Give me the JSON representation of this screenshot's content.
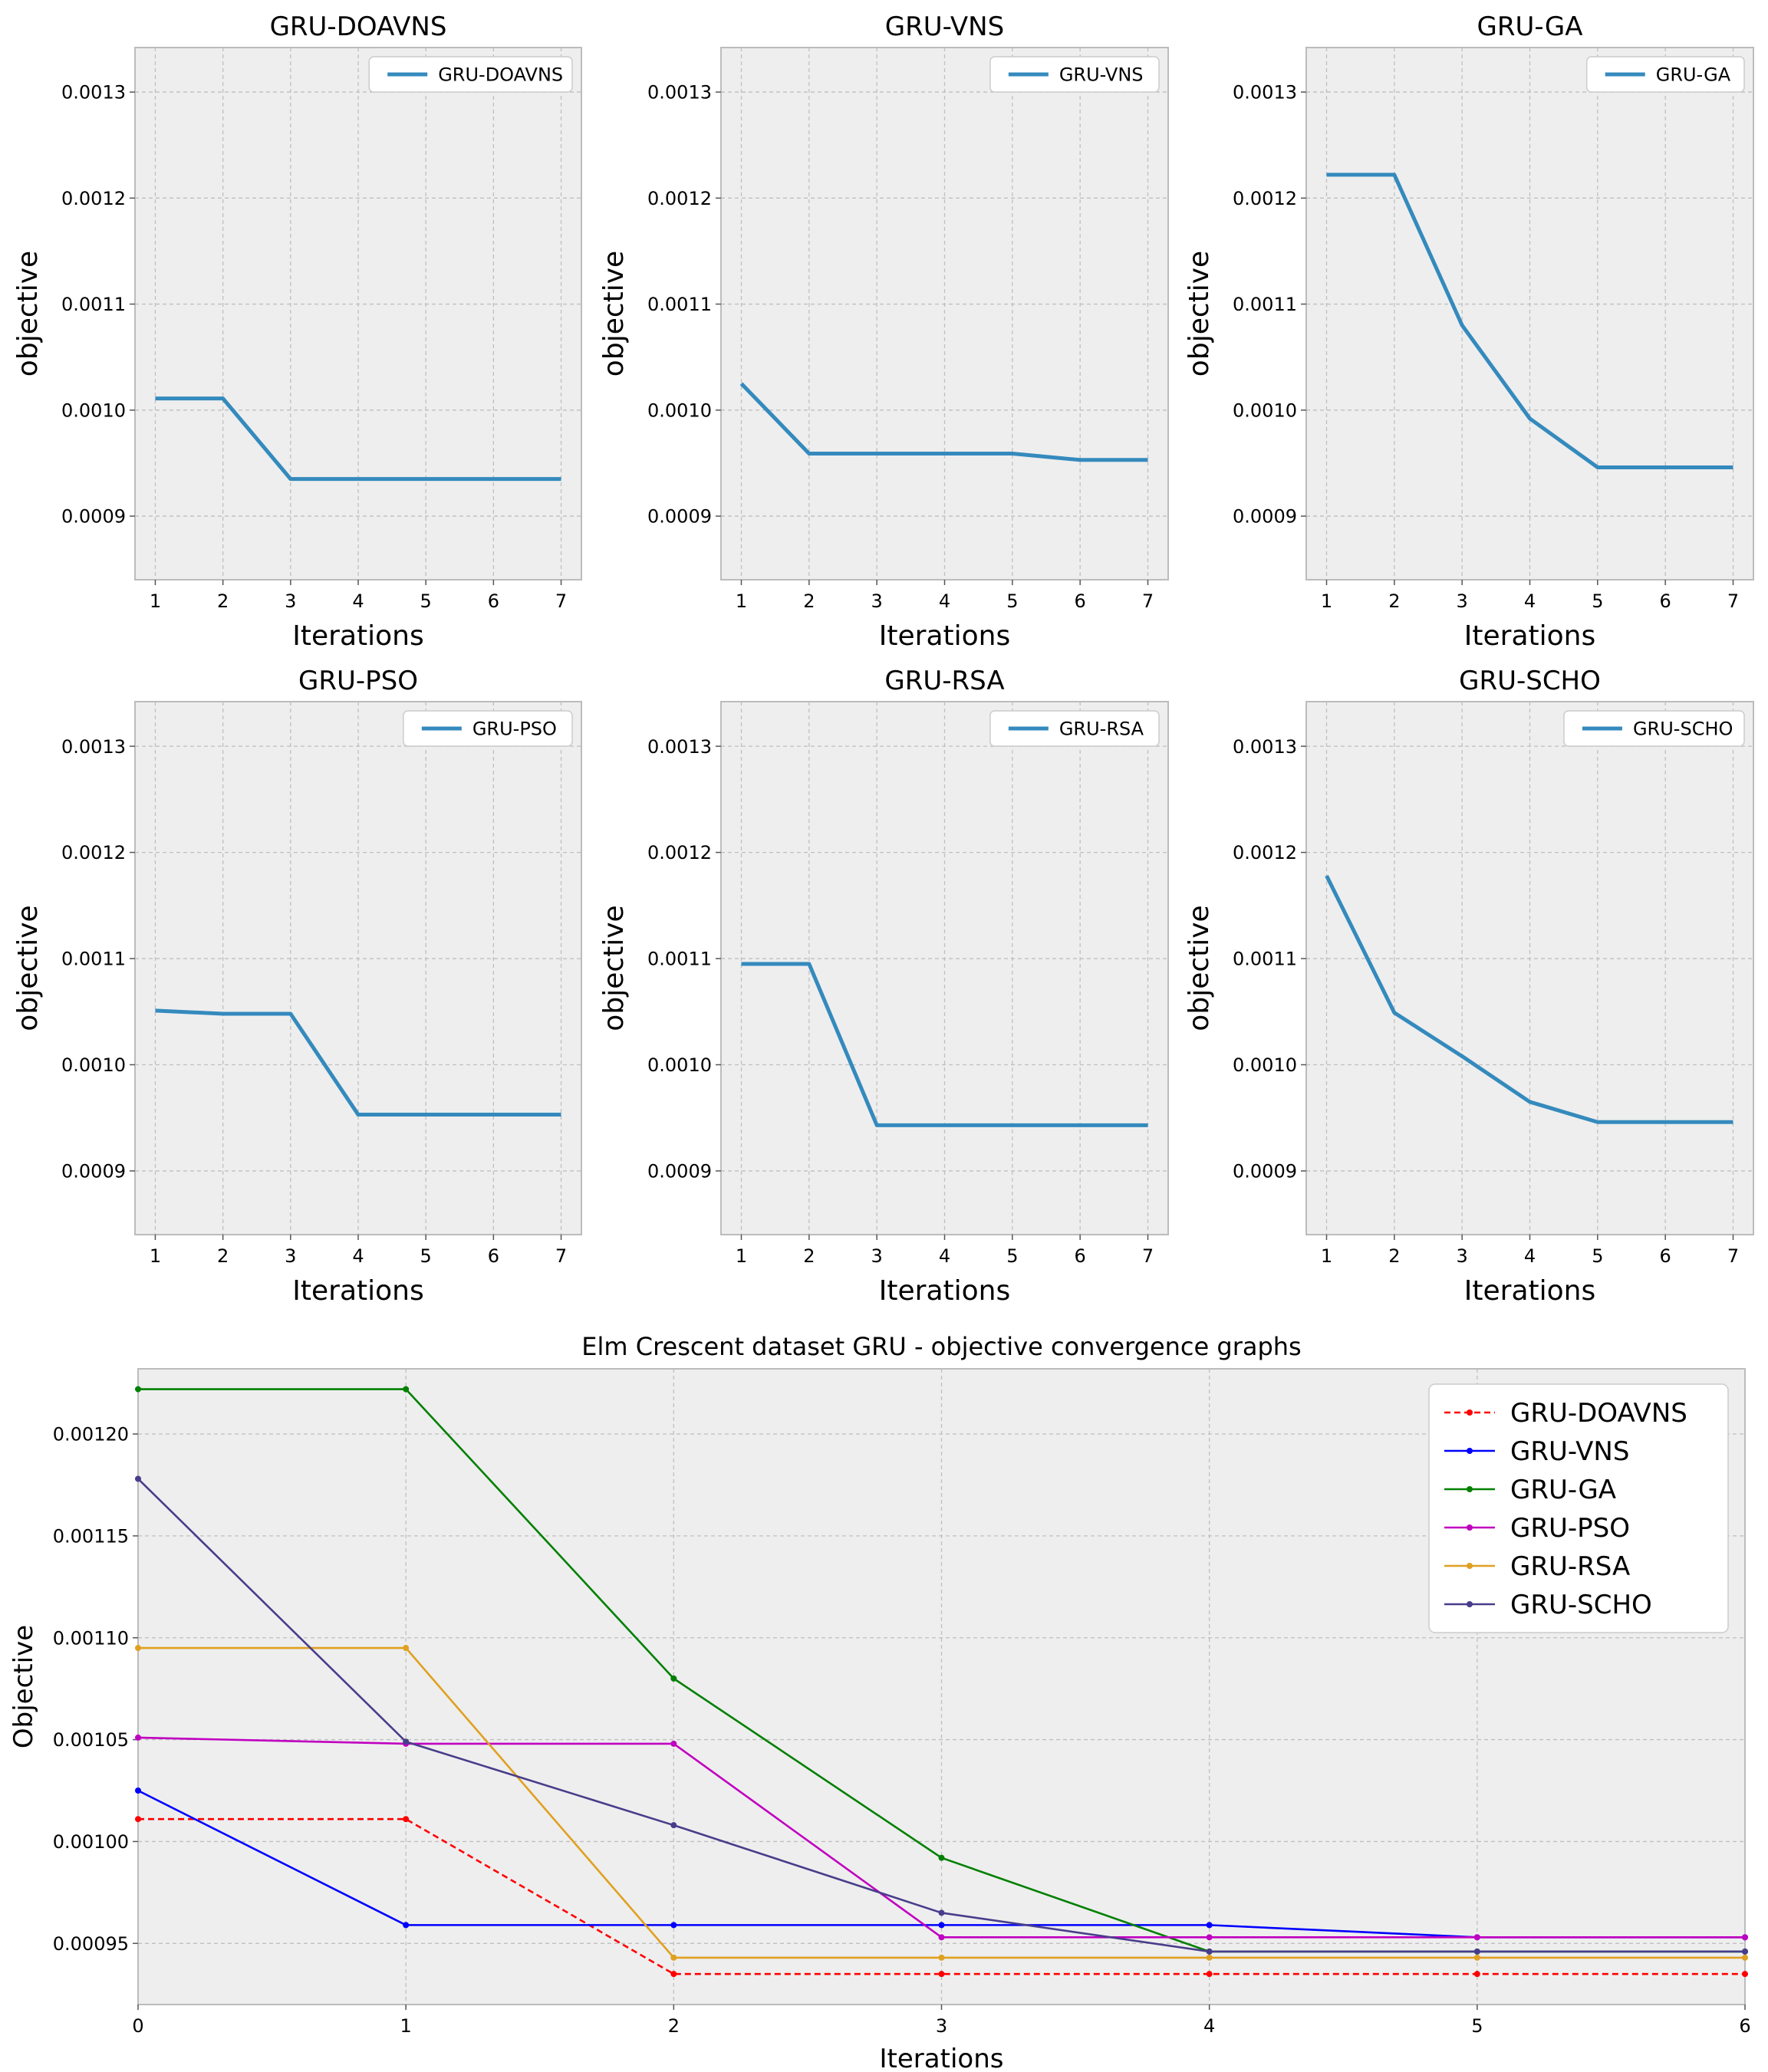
{
  "figure": {
    "background": "#ffffff",
    "plot_bg": "#eeeeee",
    "grid": "#bfbfbf",
    "spine": "#bcbcbc",
    "line_color": "#348abd"
  },
  "chart_data": [
    {
      "type": "line",
      "title": "GRU-DOAVNS",
      "xlabel": "Iterations",
      "ylabel": "objective",
      "x": [
        1,
        2,
        3,
        4,
        5,
        6,
        7
      ],
      "values": [
        0.001011,
        0.001011,
        0.000935,
        0.000935,
        0.000935,
        0.000935,
        0.000935
      ],
      "legend": "GRU-DOAVNS",
      "legend_position": "upper right",
      "xlim": [
        0.7,
        7.3
      ],
      "ylim": [
        0.00084,
        0.001342
      ],
      "xticks": [
        1,
        2,
        3,
        4,
        5,
        6,
        7
      ],
      "xtick_labels": [
        "1",
        "2",
        "3",
        "4",
        "5",
        "6",
        "7"
      ],
      "yticks": [
        0.0009,
        0.001,
        0.0011,
        0.0012,
        0.0013
      ],
      "ytick_labels": [
        "0.0009",
        "0.0010",
        "0.0011",
        "0.0012",
        "0.0013"
      ]
    },
    {
      "type": "line",
      "title": "GRU-VNS",
      "xlabel": "Iterations",
      "ylabel": "objective",
      "x": [
        1,
        2,
        3,
        4,
        5,
        6,
        7
      ],
      "values": [
        0.001025,
        0.000959,
        0.000959,
        0.000959,
        0.000959,
        0.000953,
        0.000953
      ],
      "legend": "GRU-VNS",
      "legend_position": "upper right",
      "xlim": [
        0.7,
        7.3
      ],
      "ylim": [
        0.00084,
        0.001342
      ],
      "xticks": [
        1,
        2,
        3,
        4,
        5,
        6,
        7
      ],
      "xtick_labels": [
        "1",
        "2",
        "3",
        "4",
        "5",
        "6",
        "7"
      ],
      "yticks": [
        0.0009,
        0.001,
        0.0011,
        0.0012,
        0.0013
      ],
      "ytick_labels": [
        "0.0009",
        "0.0010",
        "0.0011",
        "0.0012",
        "0.0013"
      ]
    },
    {
      "type": "line",
      "title": "GRU-GA",
      "xlabel": "Iterations",
      "ylabel": "objective",
      "x": [
        1,
        2,
        3,
        4,
        5,
        6,
        7
      ],
      "values": [
        0.001222,
        0.001222,
        0.00108,
        0.000992,
        0.000946,
        0.000946,
        0.000946
      ],
      "legend": "GRU-GA",
      "legend_position": "upper right",
      "xlim": [
        0.7,
        7.3
      ],
      "ylim": [
        0.00084,
        0.001342
      ],
      "xticks": [
        1,
        2,
        3,
        4,
        5,
        6,
        7
      ],
      "xtick_labels": [
        "1",
        "2",
        "3",
        "4",
        "5",
        "6",
        "7"
      ],
      "yticks": [
        0.0009,
        0.001,
        0.0011,
        0.0012,
        0.0013
      ],
      "ytick_labels": [
        "0.0009",
        "0.0010",
        "0.0011",
        "0.0012",
        "0.0013"
      ]
    },
    {
      "type": "line",
      "title": "GRU-PSO",
      "xlabel": "Iterations",
      "ylabel": "objective",
      "x": [
        1,
        2,
        3,
        4,
        5,
        6,
        7
      ],
      "values": [
        0.001051,
        0.001048,
        0.001048,
        0.000953,
        0.000953,
        0.000953,
        0.000953
      ],
      "legend": "GRU-PSO",
      "legend_position": "upper right",
      "xlim": [
        0.7,
        7.3
      ],
      "ylim": [
        0.00084,
        0.001342
      ],
      "xticks": [
        1,
        2,
        3,
        4,
        5,
        6,
        7
      ],
      "xtick_labels": [
        "1",
        "2",
        "3",
        "4",
        "5",
        "6",
        "7"
      ],
      "yticks": [
        0.0009,
        0.001,
        0.0011,
        0.0012,
        0.0013
      ],
      "ytick_labels": [
        "0.0009",
        "0.0010",
        "0.0011",
        "0.0012",
        "0.0013"
      ]
    },
    {
      "type": "line",
      "title": "GRU-RSA",
      "xlabel": "Iterations",
      "ylabel": "objective",
      "x": [
        1,
        2,
        3,
        4,
        5,
        6,
        7
      ],
      "values": [
        0.001095,
        0.001095,
        0.000943,
        0.000943,
        0.000943,
        0.000943,
        0.000943
      ],
      "legend": "GRU-RSA",
      "legend_position": "upper right",
      "xlim": [
        0.7,
        7.3
      ],
      "ylim": [
        0.00084,
        0.001342
      ],
      "xticks": [
        1,
        2,
        3,
        4,
        5,
        6,
        7
      ],
      "xtick_labels": [
        "1",
        "2",
        "3",
        "4",
        "5",
        "6",
        "7"
      ],
      "yticks": [
        0.0009,
        0.001,
        0.0011,
        0.0012,
        0.0013
      ],
      "ytick_labels": [
        "0.0009",
        "0.0010",
        "0.0011",
        "0.0012",
        "0.0013"
      ]
    },
    {
      "type": "line",
      "title": "GRU-SCHO",
      "xlabel": "Iterations",
      "ylabel": "objective",
      "x": [
        1,
        2,
        3,
        4,
        5,
        6,
        7
      ],
      "values": [
        0.001178,
        0.001049,
        0.001008,
        0.000965,
        0.000946,
        0.000946,
        0.000946
      ],
      "legend": "GRU-SCHO",
      "legend_position": "upper right",
      "xlim": [
        0.7,
        7.3
      ],
      "ylim": [
        0.00084,
        0.001342
      ],
      "xticks": [
        1,
        2,
        3,
        4,
        5,
        6,
        7
      ],
      "xtick_labels": [
        "1",
        "2",
        "3",
        "4",
        "5",
        "6",
        "7"
      ],
      "yticks": [
        0.0009,
        0.001,
        0.0011,
        0.0012,
        0.0013
      ],
      "ytick_labels": [
        "0.0009",
        "0.0010",
        "0.0011",
        "0.0012",
        "0.0013"
      ]
    },
    {
      "type": "line",
      "title": "Elm Crescent dataset GRU -  objective convergence graphs",
      "xlabel": "Iterations",
      "ylabel": "Objective",
      "x": [
        0,
        1,
        2,
        3,
        4,
        5,
        6
      ],
      "xlim": [
        0,
        6
      ],
      "ylim": [
        0.00092,
        0.001232
      ],
      "xticks": [
        0,
        1,
        2,
        3,
        4,
        5,
        6
      ],
      "xtick_labels": [
        "0",
        "1",
        "2",
        "3",
        "4",
        "5",
        "6"
      ],
      "yticks": [
        0.00095,
        0.001,
        0.00105,
        0.0011,
        0.00115,
        0.0012
      ],
      "ytick_labels": [
        "0.00095",
        "0.00100",
        "0.00105",
        "0.00110",
        "0.00115",
        "0.00120"
      ],
      "legend_position": "upper right",
      "series": [
        {
          "name": "GRU-DOAVNS",
          "color": "#ff0000",
          "dashed": true,
          "values": [
            0.001011,
            0.001011,
            0.000935,
            0.000935,
            0.000935,
            0.000935,
            0.000935
          ]
        },
        {
          "name": "GRU-VNS",
          "color": "#0000ff",
          "dashed": false,
          "values": [
            0.001025,
            0.000959,
            0.000959,
            0.000959,
            0.000959,
            0.000953,
            0.000953
          ]
        },
        {
          "name": "GRU-GA",
          "color": "#008000",
          "dashed": false,
          "values": [
            0.001222,
            0.001222,
            0.00108,
            0.000992,
            0.000946,
            0.000946,
            0.000946
          ]
        },
        {
          "name": "GRU-PSO",
          "color": "#c000c0",
          "dashed": false,
          "values": [
            0.001051,
            0.001048,
            0.001048,
            0.000953,
            0.000953,
            0.000953,
            0.000953
          ]
        },
        {
          "name": "GRU-RSA",
          "color": "#e0a020",
          "dashed": false,
          "values": [
            0.001095,
            0.001095,
            0.000943,
            0.000943,
            0.000943,
            0.000943,
            0.000943
          ]
        },
        {
          "name": "GRU-SCHO",
          "color": "#483d8b",
          "dashed": false,
          "values": [
            0.001178,
            0.001049,
            0.001008,
            0.000965,
            0.000946,
            0.000946,
            0.000946
          ]
        }
      ]
    }
  ]
}
